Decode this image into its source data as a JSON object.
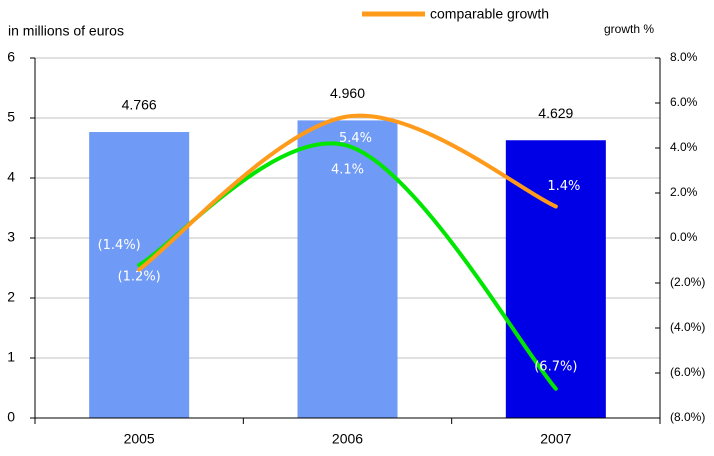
{
  "chart_data": {
    "type": "bar",
    "ylabel": "in millions of euros",
    "y2label": "growth %",
    "categories": [
      "2005",
      "2006",
      "2007"
    ],
    "values": [
      4.766,
      4.96,
      4.629
    ],
    "value_labels": [
      "4.766",
      "4.960",
      "4.629"
    ],
    "colors": [
      "#6f9af5",
      "#6f9af5",
      "#0000e6"
    ],
    "ylim": [
      0,
      6
    ],
    "yticks": [
      0,
      1,
      2,
      3,
      4,
      5,
      6
    ],
    "y2lim": [
      -8,
      8
    ],
    "y2ticks": [
      {
        "value": 8,
        "label": "8.0%"
      },
      {
        "value": 6,
        "label": "6.0%"
      },
      {
        "value": 4,
        "label": "4.0%"
      },
      {
        "value": 2,
        "label": "2.0%"
      },
      {
        "value": 0,
        "label": "0.0%"
      },
      {
        "value": -2,
        "label": "(2.0%)"
      },
      {
        "value": -4,
        "label": "(4.0%)"
      },
      {
        "value": -6,
        "label": "(6.0%)"
      },
      {
        "value": -8,
        "label": "(8.0%)"
      }
    ],
    "grid": true,
    "series": [
      {
        "type": "line",
        "axis": "y2",
        "color": "#00e600",
        "values": [
          -1.2,
          4.1,
          -6.7
        ],
        "value_labels": [
          "(1.2%)",
          "4.1%",
          "(6.7%)"
        ]
      },
      {
        "type": "line",
        "axis": "y2",
        "name": "comparable growth",
        "color": "#ff9a1a",
        "values": [
          -1.4,
          5.4,
          1.4
        ],
        "value_labels": [
          "(1.4%)",
          "5.4%",
          "1.4%"
        ]
      }
    ]
  }
}
